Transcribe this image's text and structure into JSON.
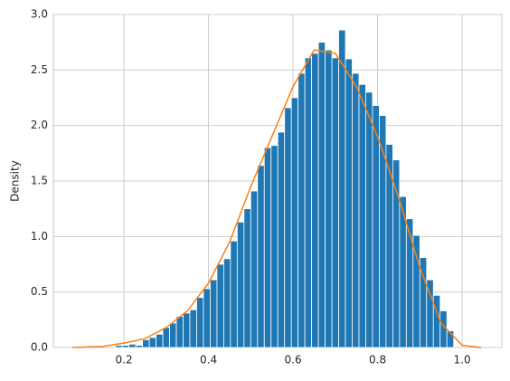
{
  "chart_data": {
    "type": "histogram",
    "ylabel": "Density",
    "bins": [
      0.18,
      0.196,
      0.212,
      0.228,
      0.244,
      0.26,
      0.276,
      0.292,
      0.308,
      0.324,
      0.34,
      0.356,
      0.372,
      0.388,
      0.404,
      0.42,
      0.436,
      0.452,
      0.468,
      0.484,
      0.5,
      0.516,
      0.532,
      0.548,
      0.564,
      0.58,
      0.596,
      0.612,
      0.628,
      0.644,
      0.66,
      0.676,
      0.692,
      0.708,
      0.724,
      0.74,
      0.756,
      0.772,
      0.788,
      0.804,
      0.82,
      0.836,
      0.852,
      0.868,
      0.884,
      0.9,
      0.916,
      0.932,
      0.948,
      0.964,
      0.98
    ],
    "values": [
      0.02,
      0.02,
      0.03,
      0.02,
      0.07,
      0.09,
      0.12,
      0.18,
      0.22,
      0.28,
      0.31,
      0.34,
      0.45,
      0.53,
      0.61,
      0.75,
      0.8,
      0.96,
      1.13,
      1.25,
      1.41,
      1.64,
      1.8,
      1.82,
      1.94,
      2.16,
      2.25,
      2.47,
      2.61,
      2.65,
      2.75,
      2.68,
      2.61,
      2.86,
      2.6,
      2.47,
      2.37,
      2.3,
      2.18,
      2.09,
      1.83,
      1.69,
      1.36,
      1.16,
      1.01,
      0.81,
      0.61,
      0.47,
      0.33,
      0.15
    ],
    "color": "#1f77b4",
    "line": {
      "x": [
        0.078,
        0.15,
        0.2,
        0.25,
        0.3,
        0.35,
        0.4,
        0.45,
        0.5,
        0.55,
        0.6,
        0.65,
        0.7,
        0.75,
        0.8,
        0.85,
        0.9,
        0.95,
        1.0,
        1.045
      ],
      "values": [
        0,
        0.01,
        0.04,
        0.08,
        0.18,
        0.33,
        0.58,
        0.95,
        1.45,
        1.9,
        2.35,
        2.68,
        2.65,
        2.35,
        1.9,
        1.35,
        0.72,
        0.22,
        0.02,
        0
      ],
      "color": "#ff7f0e"
    },
    "xlim": [
      0.033,
      1.094
    ],
    "ylim": [
      0,
      3
    ],
    "xticks": [
      0.2,
      0.4,
      0.6,
      0.8,
      {
        "value": 1,
        "label": "1.0"
      }
    ],
    "yticks": [
      {
        "value": 0,
        "label": "0.0"
      },
      {
        "value": 0.5,
        "label": "0.5"
      },
      {
        "value": 1,
        "label": "1.0"
      },
      {
        "value": 1.5,
        "label": "1.5"
      },
      {
        "value": 2,
        "label": "2.0"
      },
      {
        "value": 2.5,
        "label": "2.5"
      },
      {
        "value": 3,
        "label": "3.0"
      }
    ],
    "grid": true
  }
}
